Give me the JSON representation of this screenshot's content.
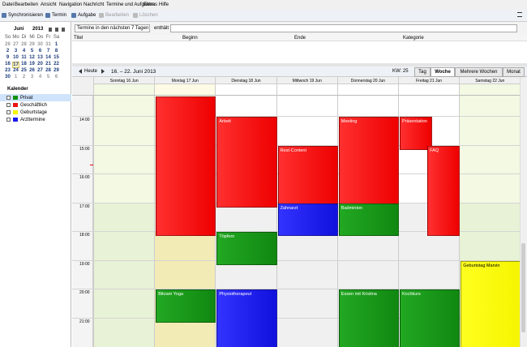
{
  "menu": [
    "Datei",
    "Bearbeiten",
    "Ansicht",
    "Navigation",
    "Nachricht",
    "Termine und Aufgaben",
    "Extras",
    "Hilfe"
  ],
  "toolbar": [
    "Synchronisieren",
    "Termin",
    "Aufgabe",
    "Bearbeiten",
    "Löschen"
  ],
  "minical": {
    "month": "Juni",
    "year": "2013",
    "weekdays": [
      "So",
      "Mo",
      "Di",
      "Mi",
      "Do",
      "Fr",
      "Sa"
    ],
    "weeks": [
      [
        26,
        27,
        28,
        29,
        30,
        31,
        1
      ],
      [
        2,
        3,
        4,
        5,
        6,
        7,
        8
      ],
      [
        9,
        10,
        11,
        12,
        13,
        14,
        15
      ],
      [
        16,
        17,
        18,
        19,
        20,
        21,
        22
      ],
      [
        23,
        24,
        25,
        26,
        27,
        28,
        29
      ],
      [
        30,
        1,
        2,
        3,
        4,
        5,
        6
      ]
    ]
  },
  "calendars": {
    "title": "Kalender",
    "items": [
      "Privat",
      "Geschäftlich",
      "Geburtstage",
      "Arzttermine"
    ]
  },
  "filter": {
    "range": "Termine in den nächsten 7 Tagen",
    "contains": "enthält"
  },
  "columns": [
    "Titel",
    "Beginn",
    "Ende",
    "Kategorie"
  ],
  "nav": {
    "today": "Heute",
    "range": "16. – 22. Juni 2013",
    "week": "KW: 25",
    "views": [
      "Tag",
      "Woche",
      "Mehrere Wochen",
      "Monat"
    ]
  },
  "days": [
    "Sonntag 16 Jun",
    "Montag 17 Jun",
    "Dienstag 18 Jun",
    "Mittwoch 19 Jun",
    "Donnerstag 20 Jun",
    "Freitag 21 Jun",
    "Samstag 22 Jun"
  ],
  "times": [
    "14:00",
    "15:00",
    "16:00",
    "17:00",
    "18:00",
    "19:00",
    "20:00",
    "21:00"
  ],
  "events": [
    "Arbeit",
    "Töpfern",
    "Physiotherapeut",
    "Rest-Content",
    "Zahnarzt",
    "Meeting",
    "Badminton",
    "Essen mit Kristina",
    "Präsentation",
    "FAQ",
    "Kochkurs",
    "Geburtstag Marvin",
    "Bikram Yoga"
  ]
}
